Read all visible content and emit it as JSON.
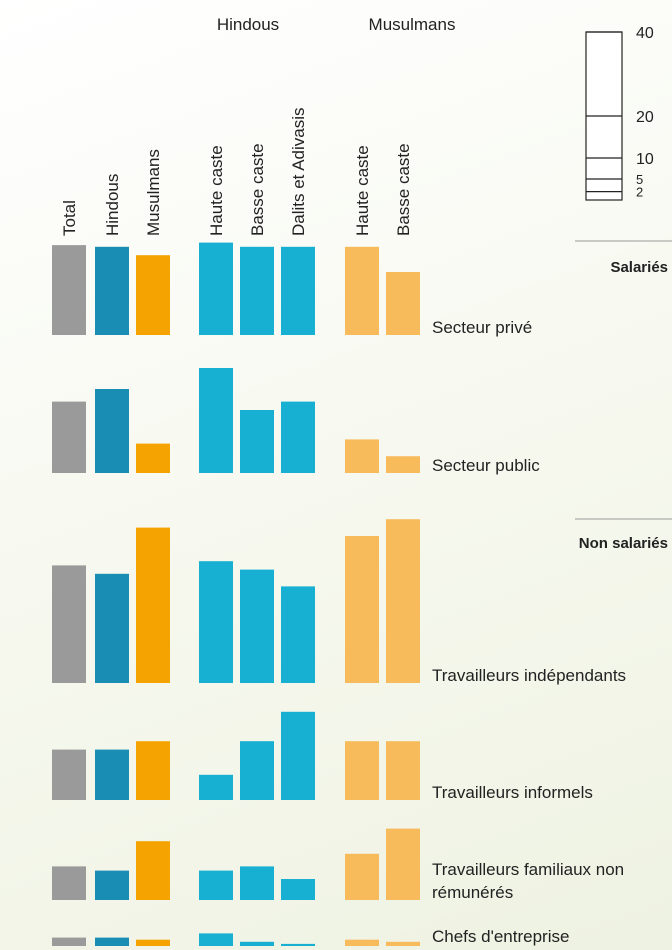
{
  "chart_data": {
    "type": "bar",
    "categories": [
      "Total",
      "Hindous",
      "Musulmans",
      "Haute caste",
      "Basse caste",
      "Dalits et Adivasis",
      "Haute caste",
      "Basse caste"
    ],
    "colors": [
      "#9a9a9a",
      "#1a8db5",
      "#f5a300",
      "#17b0d3",
      "#17b0d3",
      "#17b0d3",
      "#f8bb5c",
      "#f8bb5c"
    ],
    "groups": [
      "Hindous",
      "Musulmans"
    ],
    "sections": [
      "Salariés",
      "Non salariés"
    ],
    "series": [
      {
        "name": "Secteur privé",
        "values": [
          21.4,
          21,
          19,
          22,
          21,
          21,
          21,
          15
        ]
      },
      {
        "name": "Secteur public",
        "values": [
          17,
          20,
          7,
          25,
          15,
          17,
          8,
          4
        ]
      },
      {
        "name": "Travailleurs indépendants",
        "values": [
          28,
          26,
          37,
          29,
          27,
          23,
          35,
          39
        ]
      },
      {
        "name": "Travailleurs informels",
        "values": [
          12,
          12,
          14,
          6,
          14,
          21,
          14,
          14
        ]
      },
      {
        "name": "Travailleurs familiaux non rémunérés",
        "values": [
          8,
          7,
          14,
          7,
          8,
          5,
          11,
          17
        ]
      },
      {
        "name": "Chefs d'entreprise",
        "values": [
          2,
          2,
          1.5,
          3,
          1,
          0.5,
          1.5,
          1
        ]
      }
    ],
    "ylim": [
      0,
      40
    ],
    "yticks": [
      40,
      20,
      10,
      5,
      2
    ]
  }
}
